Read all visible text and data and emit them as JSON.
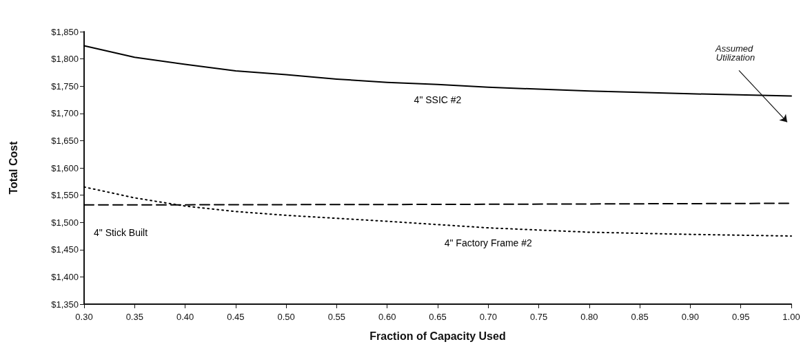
{
  "chart_data": {
    "type": "line",
    "xlabel": "Fraction of Capacity Used",
    "ylabel": "Total Cost",
    "xlim": [
      0.3,
      1.0
    ],
    "xticks": [
      {
        "value": 0.3,
        "label": "0.30"
      },
      {
        "value": 0.35,
        "label": "0.35"
      },
      {
        "value": 0.4,
        "label": "0.40"
      },
      {
        "value": 0.45,
        "label": "0.45"
      },
      {
        "value": 0.5,
        "label": "0.50"
      },
      {
        "value": 0.55,
        "label": "0.55"
      },
      {
        "value": 0.6,
        "label": "0.60"
      },
      {
        "value": 0.65,
        "label": "0.65"
      },
      {
        "value": 0.7,
        "label": "0.70"
      },
      {
        "value": 0.75,
        "label": "0.75"
      },
      {
        "value": 0.8,
        "label": "0.80"
      },
      {
        "value": 0.85,
        "label": "0.85"
      },
      {
        "value": 0.9,
        "label": "0.90"
      },
      {
        "value": 0.95,
        "label": "0.95"
      },
      {
        "value": 1.0,
        "label": "1.00"
      }
    ],
    "ylim": [
      1350,
      1850
    ],
    "yticks": [
      {
        "value": 1350,
        "label": "$1,350"
      },
      {
        "value": 1400,
        "label": "$1,400"
      },
      {
        "value": 1450,
        "label": "$1,450"
      },
      {
        "value": 1500,
        "label": "$1,500"
      },
      {
        "value": 1550,
        "label": "$1,550"
      },
      {
        "value": 1600,
        "label": "$1,600"
      },
      {
        "value": 1650,
        "label": "$1,650"
      },
      {
        "value": 1700,
        "label": "$1,700"
      },
      {
        "value": 1750,
        "label": "$1,750"
      },
      {
        "value": 1800,
        "label": "$1,800"
      },
      {
        "value": 1850,
        "label": "$1,850"
      }
    ],
    "grid": false,
    "legend": false,
    "marker": "none",
    "series": [
      {
        "name": "4\" SSIC #2",
        "color": "#000000",
        "line_style": "solid",
        "x": [
          0.3,
          0.35,
          0.4,
          0.45,
          0.5,
          0.55,
          0.6,
          0.65,
          0.7,
          0.8,
          0.9,
          1.0
        ],
        "values": [
          1824,
          1803,
          1790,
          1778,
          1771,
          1763,
          1757,
          1753,
          1748,
          1741,
          1736,
          1732
        ]
      },
      {
        "name": "4\" Stick Built",
        "color": "#000000",
        "line_style": "dashed",
        "x": [
          0.3,
          0.65,
          1.0
        ],
        "values": [
          1532,
          1533,
          1535
        ]
      },
      {
        "name": "4\" Factory Frame #2",
        "color": "#000000",
        "line_style": "dotted",
        "x": [
          0.3,
          0.35,
          0.4,
          0.45,
          0.5,
          0.6,
          0.7,
          0.8,
          0.9,
          1.0
        ],
        "values": [
          1565,
          1545,
          1530,
          1520,
          1513,
          1502,
          1490,
          1482,
          1478,
          1475
        ]
      }
    ],
    "annotations": [
      "Assumed Utilization"
    ]
  }
}
